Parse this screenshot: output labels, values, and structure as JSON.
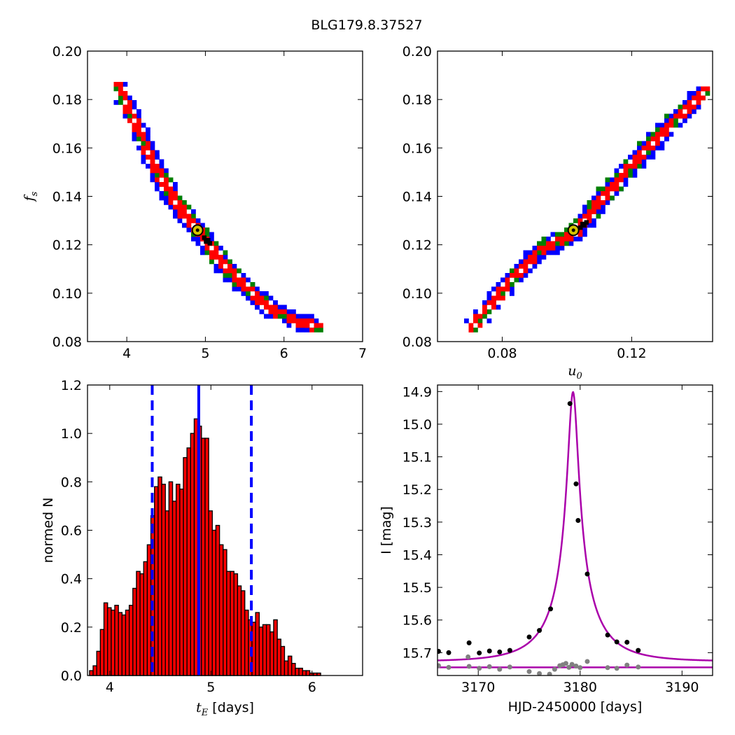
{
  "figure": {
    "title": "BLG179.8.37527"
  },
  "chart_data": [
    {
      "type": "heatmap",
      "panel": "top-left",
      "xlabel": "",
      "ylabel": "f_s",
      "xlim": [
        3.5,
        7.0
      ],
      "ylim": [
        0.08,
        0.2
      ],
      "xticks": [
        "4",
        "5",
        "6",
        "7"
      ],
      "yticks": [
        "0.08",
        "0.10",
        "0.12",
        "0.14",
        "0.16",
        "0.18",
        "0.20"
      ],
      "colors": {
        "outer": "#0000ff",
        "middle": "#008000",
        "inner": "#ff0000",
        "core": "#000000",
        "marker": "#d4c400"
      },
      "ridge": [
        [
          3.85,
          0.187
        ],
        [
          4.1,
          0.17
        ],
        [
          4.35,
          0.152
        ],
        [
          4.6,
          0.138
        ],
        [
          4.9,
          0.126
        ],
        [
          5.2,
          0.113
        ],
        [
          5.5,
          0.103
        ],
        [
          5.8,
          0.095
        ],
        [
          6.1,
          0.09
        ],
        [
          6.5,
          0.086
        ]
      ],
      "best_fit": {
        "x": 4.9,
        "y": 0.126
      }
    },
    {
      "type": "heatmap",
      "panel": "top-right",
      "xlabel": "u_0",
      "ylabel": "",
      "xlim": [
        0.06,
        0.145
      ],
      "ylim": [
        0.08,
        0.2
      ],
      "xticks": [
        "0.08",
        "0.12"
      ],
      "yticks": [
        "0.08",
        "0.10",
        "0.12",
        "0.14",
        "0.16",
        "0.18",
        "0.20"
      ],
      "colors": {
        "outer": "#0000ff",
        "middle": "#008000",
        "inner": "#ff0000",
        "core": "#000000",
        "marker": "#d4c400"
      },
      "ridge": [
        [
          0.0695,
          0.086
        ],
        [
          0.08,
          0.103
        ],
        [
          0.09,
          0.118
        ],
        [
          0.102,
          0.126
        ],
        [
          0.11,
          0.14
        ],
        [
          0.12,
          0.155
        ],
        [
          0.13,
          0.169
        ],
        [
          0.14,
          0.182
        ],
        [
          0.143,
          0.187
        ]
      ],
      "best_fit": {
        "x": 0.102,
        "y": 0.126
      }
    },
    {
      "type": "bar",
      "panel": "bottom-left",
      "xlabel": "t_E [days]",
      "ylabel": "normed N",
      "xlim": [
        3.78,
        6.5
      ],
      "ylim": [
        0.0,
        1.2
      ],
      "xticks": [
        "4",
        "5",
        "6"
      ],
      "yticks": [
        "0.0",
        "0.2",
        "0.4",
        "0.6",
        "0.8",
        "1.0",
        "1.2"
      ],
      "bin_start": 3.8,
      "bin_width": 0.0357,
      "values": [
        0.02,
        0.04,
        0.1,
        0.19,
        0.3,
        0.28,
        0.27,
        0.29,
        0.26,
        0.25,
        0.27,
        0.29,
        0.36,
        0.43,
        0.42,
        0.47,
        0.54,
        0.66,
        0.78,
        0.82,
        0.79,
        0.68,
        0.8,
        0.72,
        0.79,
        0.77,
        0.9,
        0.94,
        1.0,
        1.06,
        1.03,
        0.98,
        0.98,
        0.68,
        0.6,
        0.62,
        0.54,
        0.52,
        0.43,
        0.43,
        0.42,
        0.37,
        0.35,
        0.27,
        0.23,
        0.22,
        0.26,
        0.2,
        0.21,
        0.21,
        0.18,
        0.23,
        0.15,
        0.12,
        0.06,
        0.08,
        0.05,
        0.03,
        0.03,
        0.02,
        0.02,
        0.01,
        0.01,
        0.01
      ],
      "bar_color": "#ff0000",
      "median": 4.88,
      "bounds": [
        4.42,
        5.4
      ],
      "line_color": "#0000ff"
    },
    {
      "type": "scatter",
      "panel": "bottom-right",
      "xlabel": "HJD-2450000 [days]",
      "ylabel": "I [mag]",
      "xlim": [
        3166,
        3193
      ],
      "ylim": [
        15.77,
        14.88
      ],
      "y_inverted": true,
      "xticks": [
        "3170",
        "3180",
        "3190"
      ],
      "yticks": [
        "14.9",
        "15.0",
        "15.1",
        "15.2",
        "15.3",
        "15.4",
        "15.5",
        "15.6",
        "15.7"
      ],
      "model": {
        "t0": 3179.3,
        "u0": 0.1,
        "tE": 4.9,
        "fs": 0.126,
        "I_base": 15.727,
        "color": "#aa00aa"
      },
      "points": [
        {
          "x": 3166.1,
          "y": 15.696
        },
        {
          "x": 3167.1,
          "y": 15.7
        },
        {
          "x": 3169.1,
          "y": 15.67
        },
        {
          "x": 3170.1,
          "y": 15.701
        },
        {
          "x": 3171.1,
          "y": 15.695
        },
        {
          "x": 3172.1,
          "y": 15.698
        },
        {
          "x": 3173.1,
          "y": 15.693
        },
        {
          "x": 3175.0,
          "y": 15.652
        },
        {
          "x": 3176.0,
          "y": 15.632
        },
        {
          "x": 3177.1,
          "y": 15.566
        },
        {
          "x": 3179.0,
          "y": 14.937
        },
        {
          "x": 3179.6,
          "y": 15.183
        },
        {
          "x": 3179.8,
          "y": 15.295
        },
        {
          "x": 3180.7,
          "y": 15.459
        },
        {
          "x": 3182.7,
          "y": 15.646
        },
        {
          "x": 3183.6,
          "y": 15.667
        },
        {
          "x": 3184.6,
          "y": 15.668
        },
        {
          "x": 3185.7,
          "y": 15.693
        }
      ],
      "point_color": "#000000",
      "residuals": [
        {
          "x": 3166.1,
          "y": 15.74
        },
        {
          "x": 3167.1,
          "y": 15.745
        },
        {
          "x": 3169.0,
          "y": 15.713
        },
        {
          "x": 3169.1,
          "y": 15.742
        },
        {
          "x": 3170.1,
          "y": 15.748
        },
        {
          "x": 3171.1,
          "y": 15.743
        },
        {
          "x": 3172.1,
          "y": 15.751
        },
        {
          "x": 3173.1,
          "y": 15.744
        },
        {
          "x": 3175.0,
          "y": 15.758
        },
        {
          "x": 3176.0,
          "y": 15.764
        },
        {
          "x": 3177.0,
          "y": 15.766
        },
        {
          "x": 3177.5,
          "y": 15.751
        },
        {
          "x": 3178.0,
          "y": 15.74
        },
        {
          "x": 3178.3,
          "y": 15.737
        },
        {
          "x": 3178.6,
          "y": 15.733
        },
        {
          "x": 3178.9,
          "y": 15.745
        },
        {
          "x": 3179.2,
          "y": 15.736
        },
        {
          "x": 3179.6,
          "y": 15.741
        },
        {
          "x": 3180.0,
          "y": 15.746
        },
        {
          "x": 3180.7,
          "y": 15.727
        },
        {
          "x": 3182.7,
          "y": 15.746
        },
        {
          "x": 3183.6,
          "y": 15.748
        },
        {
          "x": 3184.6,
          "y": 15.738
        },
        {
          "x": 3185.7,
          "y": 15.744
        }
      ],
      "residual_color": "#808080",
      "residual_line": 15.745
    }
  ]
}
